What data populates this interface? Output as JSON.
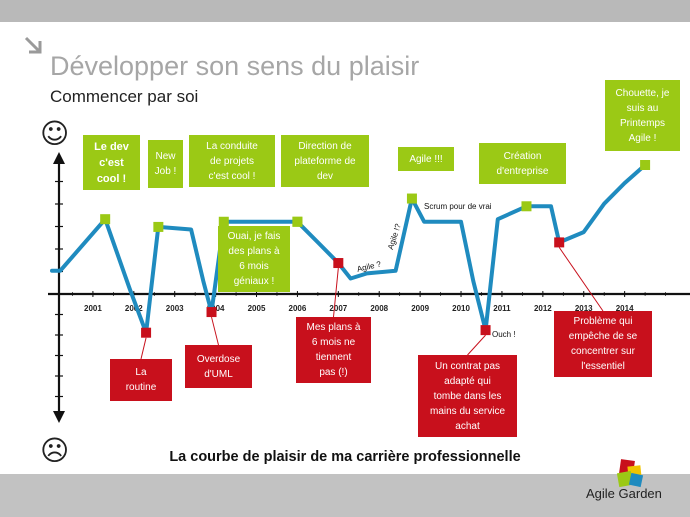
{
  "slide": {
    "title": "Développer son sens du plaisir",
    "subtitle": "Commencer par soi",
    "caption": "La courbe de plaisir de ma carrière professionnelle",
    "logo_text": "Agile Garden",
    "happy_face": "☺",
    "sad_face": "☹"
  },
  "colors": {
    "curve": "#1f8bbf",
    "positive": "#9bc915",
    "negative": "#c8101c",
    "top_bar": "#b9b9b9",
    "bottom_bar": "#c2c2c2"
  },
  "chart_data": {
    "type": "line",
    "title": "La courbe de plaisir de ma carrière professionnelle",
    "xlabel": "",
    "ylabel": "",
    "y_scale_note": "y is a pleasure level from -5 (sad face) to +5 (happy face); axis has no printed numbers",
    "xlim": [
      2000.0,
      2015.5
    ],
    "ylim": [
      -5.0,
      5.0
    ],
    "x_ticks": [
      "2001",
      "2002",
      "2003",
      "2004",
      "2005",
      "2006",
      "2007",
      "2008",
      "2009",
      "2010",
      "2011",
      "2012",
      "2013",
      "2014"
    ],
    "series": [
      {
        "points": [
          [
            2000.0,
            0.9
          ],
          [
            2000.2,
            0.9
          ],
          [
            2001.3,
            2.9
          ],
          [
            2001.9,
            0.2
          ],
          [
            2002.3,
            -1.5
          ],
          [
            2002.6,
            2.6
          ],
          [
            2003.4,
            2.5
          ],
          [
            2003.7,
            0.5
          ],
          [
            2003.9,
            -0.7
          ],
          [
            2004.2,
            2.8
          ],
          [
            2006.0,
            2.8
          ],
          [
            2006.5,
            2.0
          ],
          [
            2007.0,
            1.2
          ],
          [
            2007.3,
            0.6
          ],
          [
            2007.7,
            0.8
          ],
          [
            2008.4,
            0.9
          ],
          [
            2008.8,
            3.7
          ],
          [
            2009.1,
            2.8
          ],
          [
            2010.0,
            2.8
          ],
          [
            2010.3,
            0.5
          ],
          [
            2010.6,
            -1.4
          ],
          [
            2010.9,
            2.9
          ],
          [
            2011.6,
            3.4
          ],
          [
            2012.2,
            3.4
          ],
          [
            2012.4,
            2.0
          ],
          [
            2013.0,
            2.4
          ],
          [
            2013.5,
            3.5
          ],
          [
            2014.0,
            4.3
          ],
          [
            2014.5,
            5.0
          ]
        ]
      }
    ],
    "annotations": [
      {
        "type": "positive",
        "x": 2001.3,
        "y": 2.9,
        "text": [
          "Le dev",
          "c'est",
          "cool !"
        ],
        "bold": true
      },
      {
        "type": "positive",
        "x": 2002.6,
        "y": 2.6,
        "text": [
          "New",
          "Job !"
        ]
      },
      {
        "type": "positive",
        "x": 2004.2,
        "y": 2.8,
        "text": [
          "La conduite",
          "de projets",
          "c'est cool !"
        ]
      },
      {
        "type": "positive",
        "x": 2006.0,
        "y": 2.8,
        "text": [
          "Direction de",
          "plateforme de",
          "dev"
        ]
      },
      {
        "type": "positive",
        "x": 2006.0,
        "y": 2.8,
        "text": [
          "Ouai, je fais",
          "des plans à",
          "6 mois",
          "géniaux !"
        ]
      },
      {
        "type": "positive",
        "x": 2008.8,
        "y": 3.7,
        "text": [
          "Agile !!!"
        ]
      },
      {
        "type": "positive",
        "x": 2011.6,
        "y": 3.4,
        "text": [
          "Création",
          "d'entreprise"
        ]
      },
      {
        "type": "positive",
        "x": 2014.5,
        "y": 5.0,
        "text": [
          "Chouette, je",
          "suis au",
          "Printemps",
          "Agile !"
        ]
      },
      {
        "type": "negative",
        "x": 2002.3,
        "y": -1.5,
        "text": [
          "La",
          "routine"
        ]
      },
      {
        "type": "negative",
        "x": 2003.9,
        "y": -0.7,
        "text": [
          "Overdose",
          "d'UML"
        ]
      },
      {
        "type": "negative",
        "x": 2007.0,
        "y": 1.2,
        "text": [
          "Mes plans à",
          "6 mois ne",
          "tiennent",
          "pas (!)"
        ]
      },
      {
        "type": "negative",
        "x": 2010.6,
        "y": -1.4,
        "text": [
          "Un contrat pas",
          "adapté qui",
          "tombe dans les",
          "mains du service",
          "achat"
        ]
      },
      {
        "type": "negative",
        "x": 2012.4,
        "y": 2.0,
        "text": [
          "Problème qui",
          "empêche de se",
          "concentrer sur",
          "l'essentiel"
        ]
      }
    ],
    "curve_notes": [
      "Scrum pour de vrai",
      "Agile ?",
      "Agile !?",
      "Ouch !"
    ]
  }
}
